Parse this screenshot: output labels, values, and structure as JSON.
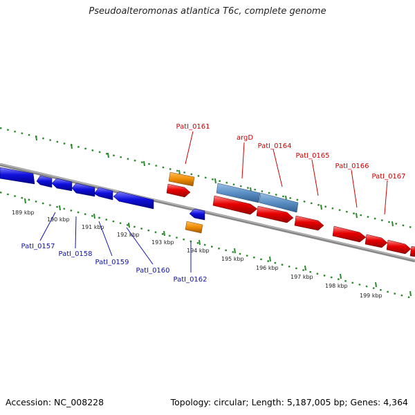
{
  "title": "Pseudoalteromonas atlantica T6c, complete genome",
  "footer": {
    "accession": "Accession: NC_008228",
    "summary": "Topology: circular; Length: 5,187,005 bp; Genes: 4,364"
  },
  "colors": {
    "forward_cds": "#e60000",
    "reverse_cds": "#1010dd",
    "rrna": "#f08c00",
    "gene_feature": "#5b8fc4",
    "backbone": "#888888",
    "ruler_ticks": "#2a8a2a",
    "forward_label": "#cc0000",
    "reverse_label": "#1010aa"
  },
  "ruler_labels": [
    "189 kbp",
    "190 kbp",
    "191 kbp",
    "192 kbp",
    "193 kbp",
    "194 kbp",
    "195 kbp",
    "196 kbp",
    "197 kbp",
    "198 kbp",
    "199 kbp"
  ],
  "forward_gene_labels": [
    "PatI_0161",
    "argD",
    "PatI_0164",
    "PatI_0165",
    "PatI_0166",
    "PatI_0167"
  ],
  "reverse_gene_labels": [
    "PatI_0157",
    "PatI_0158",
    "PatI_0159",
    "PatI_0160",
    "PatI_0162"
  ]
}
